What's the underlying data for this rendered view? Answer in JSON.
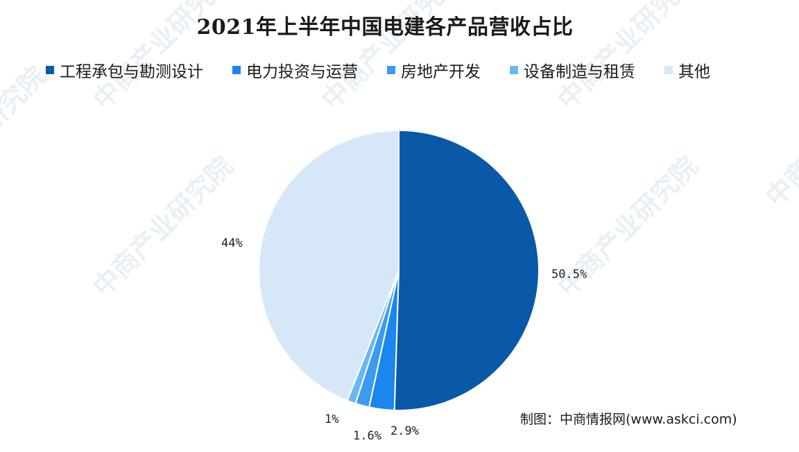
{
  "chart_data": {
    "type": "pie",
    "title": "2021年上半年中国电建各产品营收占比",
    "legend_position": "top",
    "slices": [
      {
        "label": "工程承包与勘测设计",
        "value": 50.5,
        "value_label": "50.5%",
        "color": "#0a58a8"
      },
      {
        "label": "电力投资与运营",
        "value": 2.9,
        "value_label": "2.9%",
        "color": "#1a86ee"
      },
      {
        "label": "房地产开发",
        "value": 1.6,
        "value_label": "1.6%",
        "color": "#3a9bf0"
      },
      {
        "label": "设备制造与租赁",
        "value": 1,
        "value_label": "1%",
        "color": "#6ab6f2"
      },
      {
        "label": "其他",
        "value": 44,
        "value_label": "44%",
        "color": "#d6e8f8"
      }
    ]
  },
  "watermark": {
    "text": "中商产业研究院"
  },
  "source": "制图：中商情报网(www.askci.com)"
}
